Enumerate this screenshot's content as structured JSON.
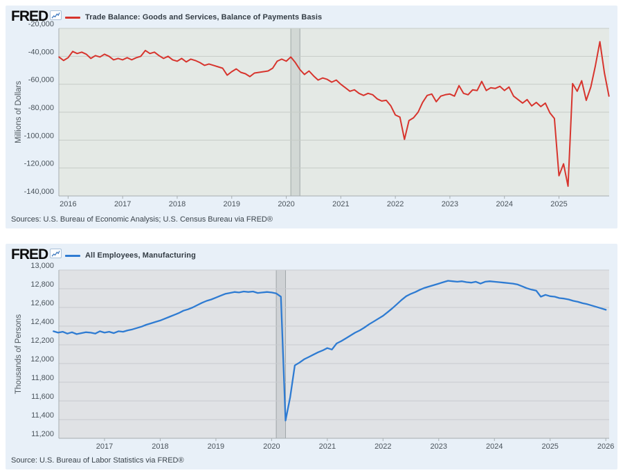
{
  "page": {
    "background": "#ffffff"
  },
  "chart_data": [
    {
      "id": "trade-balance",
      "type": "line",
      "brand": "FRED",
      "legend": "Trade Balance: Goods and Services, Balance of Payments Basis",
      "title": "Trade Balance: Goods and Services, Balance of Payments Basis",
      "xlabel": "",
      "ylabel": "Millions of Dollars",
      "source": "Sources: U.S. Bureau of Economic Analysis; U.S. Census Bureau via FRED®",
      "card_bg": "#e8f0f8",
      "plot_bg": "#e4e9e5",
      "grid_color": "#c6ccc7",
      "axis_color": "#a6adb0",
      "legend_position": "top-left",
      "grid": "horizontal-only",
      "x_domain": [
        2015.83,
        2025.92
      ],
      "y_domain": [
        -140000,
        -20000
      ],
      "ylim": [
        -140000,
        -20000
      ],
      "y_tick_values": [
        -20000,
        -40000,
        -60000,
        -80000,
        -100000,
        -120000,
        -140000
      ],
      "y_tick_labels": [
        "-20,000",
        "-40,000",
        "-60,000",
        "-80,000",
        "-100,000",
        "-120,000",
        "-140,000"
      ],
      "x_tick_values": [
        2016,
        2017,
        2018,
        2019,
        2020,
        2021,
        2022,
        2023,
        2024,
        2025
      ],
      "x_tick_labels": [
        "2016",
        "2017",
        "2018",
        "2019",
        "2020",
        "2021",
        "2022",
        "2023",
        "2024",
        "2025"
      ],
      "recession_band": {
        "label": "US recession",
        "x_from": 2020.083,
        "x_to": 2020.25
      },
      "series": [
        {
          "name": "Trade Balance: Goods and Services, Balance of Payments Basis",
          "units": "Millions of Dollars",
          "frequency": "monthly",
          "color": "#d7342d",
          "width": 2,
          "x_start": 2015.8333,
          "x_step_years": 0.0833333,
          "values": [
            -40500,
            -43000,
            -41000,
            -36500,
            -38000,
            -37000,
            -38500,
            -41500,
            -39500,
            -40500,
            -38500,
            -40000,
            -42500,
            -41500,
            -42500,
            -41000,
            -42500,
            -41000,
            -40000,
            -35800,
            -38000,
            -37000,
            -39500,
            -41500,
            -40000,
            -42500,
            -43500,
            -41500,
            -44000,
            -42000,
            -43000,
            -44500,
            -46500,
            -45500,
            -46500,
            -47500,
            -48500,
            -53500,
            -51000,
            -49000,
            -51500,
            -52500,
            -54500,
            -52000,
            -51500,
            -51000,
            -50500,
            -48500,
            -43500,
            -42000,
            -43500,
            -40500,
            -44500,
            -49500,
            -53000,
            -50500,
            -54000,
            -57000,
            -55500,
            -56500,
            -58500,
            -57000,
            -60000,
            -62500,
            -65000,
            -64000,
            -66500,
            -68000,
            -66500,
            -67500,
            -70500,
            -72000,
            -71500,
            -75500,
            -82000,
            -83500,
            -99500,
            -86000,
            -84000,
            -80000,
            -73000,
            -68000,
            -67000,
            -72500,
            -68500,
            -67500,
            -67000,
            -68500,
            -61000,
            -66500,
            -67500,
            -64000,
            -64500,
            -58000,
            -64500,
            -62500,
            -63000,
            -61500,
            -64500,
            -62000,
            -68500,
            -71000,
            -73500,
            -71000,
            -75500,
            -73000,
            -76000,
            -73500,
            -80500,
            -84500,
            -125500,
            -117000,
            -133000,
            -59500,
            -65000,
            -57500,
            -71500,
            -62000,
            -47000,
            -29500,
            -52000,
            -68500
          ]
        }
      ]
    },
    {
      "id": "manufacturing-employment",
      "type": "line",
      "brand": "FRED",
      "legend": "All Employees, Manufacturing",
      "title": "All Employees, Manufacturing",
      "xlabel": "",
      "ylabel": "Thousands of Persons",
      "source": "Source: U.S. Bureau of Labor Statistics via FRED®",
      "card_bg": "#e8f0f8",
      "plot_bg": "#e0e2e5",
      "grid_color": "#c8cbd0",
      "axis_color": "#a6adb0",
      "legend_position": "top-left",
      "grid": "horizontal-only",
      "x_domain": [
        2016.18,
        2026.06
      ],
      "y_domain": [
        11200,
        13000
      ],
      "ylim": [
        11200,
        13000
      ],
      "y_tick_values": [
        13000,
        12800,
        12600,
        12400,
        12200,
        12000,
        11800,
        11600,
        11400,
        11200
      ],
      "y_tick_labels": [
        "13,000",
        "12,800",
        "12,600",
        "12,400",
        "12,200",
        "12,000",
        "11,800",
        "11,600",
        "11,400",
        "11,200"
      ],
      "x_tick_values": [
        2017,
        2018,
        2019,
        2020,
        2021,
        2022,
        2023,
        2024,
        2025,
        2026
      ],
      "x_tick_labels": [
        "2017",
        "2018",
        "2019",
        "2020",
        "2021",
        "2022",
        "2023",
        "2024",
        "2025",
        "2026"
      ],
      "recession_band": {
        "label": "US recession",
        "x_from": 2020.083,
        "x_to": 2020.25
      },
      "series": [
        {
          "name": "All Employees, Manufacturing",
          "units": "Thousands of Persons",
          "frequency": "monthly",
          "color": "#2e7bd2",
          "width": 2.3,
          "x_start": 2016.0833,
          "x_step_years": 0.0833333,
          "values": [
            12345,
            12330,
            12340,
            12320,
            12335,
            12315,
            12325,
            12335,
            12330,
            12320,
            12345,
            12330,
            12340,
            12325,
            12345,
            12340,
            12355,
            12365,
            12380,
            12395,
            12415,
            12430,
            12445,
            12460,
            12480,
            12500,
            12520,
            12540,
            12565,
            12580,
            12600,
            12625,
            12650,
            12670,
            12685,
            12705,
            12725,
            12745,
            12755,
            12765,
            12760,
            12770,
            12765,
            12770,
            12755,
            12760,
            12765,
            12760,
            12750,
            12715,
            11390,
            11640,
            11980,
            12010,
            12045,
            12070,
            12095,
            12120,
            12140,
            12165,
            12150,
            12215,
            12240,
            12270,
            12300,
            12330,
            12355,
            12385,
            12420,
            12450,
            12480,
            12510,
            12550,
            12590,
            12635,
            12680,
            12720,
            12745,
            12765,
            12790,
            12810,
            12825,
            12840,
            12855,
            12870,
            12885,
            12880,
            12875,
            12880,
            12870,
            12865,
            12875,
            12855,
            12875,
            12880,
            12875,
            12870,
            12865,
            12860,
            12855,
            12845,
            12825,
            12805,
            12790,
            12780,
            12715,
            12735,
            12720,
            12715,
            12700,
            12695,
            12685,
            12670,
            12660,
            12645,
            12635,
            12620,
            12605,
            12590,
            12575
          ]
        }
      ]
    }
  ]
}
